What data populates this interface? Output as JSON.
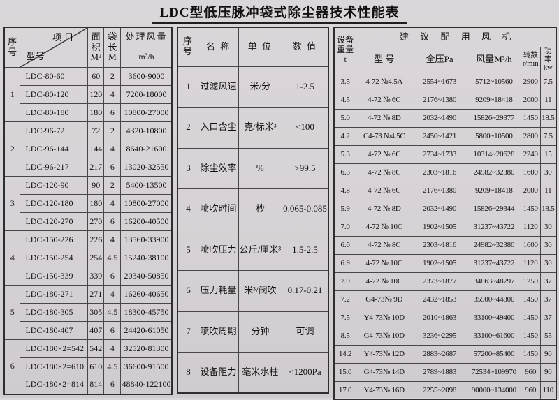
{
  "title": "LDC型低压脉冲袋式除尘器技术性能表",
  "left_table": {
    "headers": {
      "no": "序\n号",
      "item": "项目",
      "model": "型号",
      "area": "面积\nM²",
      "bag_length": "袋长\nM",
      "airflow": "处理风量",
      "airflow_unit": "m³/h"
    },
    "groups": [
      {
        "no": "1",
        "rows": [
          {
            "model": "LDC-80-60",
            "area": "60",
            "bag": "2",
            "airflow": "3600-9000"
          },
          {
            "model": "LDC-80-120",
            "area": "120",
            "bag": "4",
            "airflow": "7200-18000"
          },
          {
            "model": "LDC-80-180",
            "area": "180",
            "bag": "6",
            "airflow": "10800-27000"
          }
        ]
      },
      {
        "no": "2",
        "rows": [
          {
            "model": "LDC-96-72",
            "area": "72",
            "bag": "2",
            "airflow": "4320-10800"
          },
          {
            "model": "LDC-96-144",
            "area": "144",
            "bag": "4",
            "airflow": "8640-21600"
          },
          {
            "model": "LDC-96-217",
            "area": "217",
            "bag": "6",
            "airflow": "13020-32550"
          }
        ]
      },
      {
        "no": "3",
        "rows": [
          {
            "model": "LDC-120-90",
            "area": "90",
            "bag": "2",
            "airflow": "5400-13500"
          },
          {
            "model": "LDC-120-180",
            "area": "180",
            "bag": "4",
            "airflow": "10800-27000"
          },
          {
            "model": "LDC-120-270",
            "area": "270",
            "bag": "6",
            "airflow": "16200-40500"
          }
        ]
      },
      {
        "no": "4",
        "rows": [
          {
            "model": "LDC-150-226",
            "area": "226",
            "bag": "4",
            "airflow": "13560-33900"
          },
          {
            "model": "LDC-150-254",
            "area": "254",
            "bag": "4.5",
            "airflow": "15240-38100"
          },
          {
            "model": "LDC-150-339",
            "area": "339",
            "bag": "6",
            "airflow": "20340-50850"
          }
        ]
      },
      {
        "no": "5",
        "rows": [
          {
            "model": "LDC-180-271",
            "area": "271",
            "bag": "4",
            "airflow": "16260-40650"
          },
          {
            "model": "LDC-180-305",
            "area": "305",
            "bag": "4.5",
            "airflow": "18300-45750"
          },
          {
            "model": "LDC-180-407",
            "area": "407",
            "bag": "6",
            "airflow": "24420-61050"
          }
        ]
      },
      {
        "no": "6",
        "rows": [
          {
            "model": "LDC-180×2=542",
            "area": "542",
            "bag": "4",
            "airflow": "32520-81300"
          },
          {
            "model": "LDC-180×2=610",
            "area": "610",
            "bag": "4.5",
            "airflow": "36600-91500"
          },
          {
            "model": "LDC-180×2=814",
            "area": "814",
            "bag": "6",
            "airflow": "48840-122100"
          }
        ]
      }
    ]
  },
  "middle_table": {
    "headers": {
      "no": "序\n号",
      "name": "名 称",
      "unit": "单 位",
      "value": "数 值"
    },
    "rows": [
      {
        "no": "1",
        "name": "过滤风速",
        "unit": "米/分",
        "value": "1-2.5"
      },
      {
        "no": "2",
        "name": "入口含尘",
        "unit": "克/标米³",
        "value": "<100"
      },
      {
        "no": "3",
        "name": "除尘效率",
        "unit": "%",
        "value": ">99.5"
      },
      {
        "no": "4",
        "name": "喷吹时间",
        "unit": "秒",
        "value": "0.065-0.085"
      },
      {
        "no": "5",
        "name": "喷吹压力",
        "unit": "公斤/厘米³",
        "value": "1.5-2.5"
      },
      {
        "no": "6",
        "name": "压力耗量",
        "unit": "米³/阀吹",
        "value": "0.17-0.21"
      },
      {
        "no": "7",
        "name": "喷吹周期",
        "unit": "分钟",
        "value": "可调"
      },
      {
        "no": "8",
        "name": "设备阻力",
        "unit": "毫米水柱",
        "value": "<1200Pa"
      }
    ]
  },
  "right_table": {
    "headers": {
      "weight": "设备\n重量\nt",
      "fan_group": "建 议 配 用 风 机",
      "model": "型 号",
      "pressure": "全压Pa",
      "airflow": "风量M³/h",
      "speed": "转数\nr/min",
      "power": "功率\nkw"
    },
    "rows": [
      {
        "weight": "3.5",
        "model": "4-72 №4.5A",
        "pressure": "2554~1673",
        "airflow": "5712~10560",
        "speed": "2900",
        "power": "7.5"
      },
      {
        "weight": "4.5",
        "model": "4-72 № 6C",
        "pressure": "2176~1380",
        "airflow": "9209~18418",
        "speed": "2000",
        "power": "11"
      },
      {
        "weight": "5.0",
        "model": "4-72 № 8D",
        "pressure": "2032~1490",
        "airflow": "15826~29377",
        "speed": "1450",
        "power": "18.5"
      },
      {
        "weight": "4.2",
        "model": "C4-73 №4.5C",
        "pressure": "2450~1421",
        "airflow": "5800~10500",
        "speed": "2800",
        "power": "7.5"
      },
      {
        "weight": "5.3",
        "model": "4-72 № 6C",
        "pressure": "2734~1733",
        "airflow": "10314~20628",
        "speed": "2240",
        "power": "15"
      },
      {
        "weight": "6.3",
        "model": "4-72 № 8C",
        "pressure": "2303~1816",
        "airflow": "24982~32380",
        "speed": "1600",
        "power": "30"
      },
      {
        "weight": "4.8",
        "model": "4-72 № 6C",
        "pressure": "2176~1380",
        "airflow": "9209~18418",
        "speed": "2000",
        "power": "11"
      },
      {
        "weight": "5.9",
        "model": "4-72 № 8D",
        "pressure": "2032~1490",
        "airflow": "15826~29344",
        "speed": "1450",
        "power": "18.5"
      },
      {
        "weight": "7.0",
        "model": "4-72 № 10C",
        "pressure": "1902~1505",
        "airflow": "31237~43722",
        "speed": "1120",
        "power": "30"
      },
      {
        "weight": "6.6",
        "model": "4-72 № 8C",
        "pressure": "2303~1816",
        "airflow": "24982~32380",
        "speed": "1600",
        "power": "30"
      },
      {
        "weight": "6.9",
        "model": "4-72 № 10C",
        "pressure": "1902~1505",
        "airflow": "31237~43722",
        "speed": "1120",
        "power": "30"
      },
      {
        "weight": "7.9",
        "model": "4-72 № 10C",
        "pressure": "2373~1877",
        "airflow": "34863~48797",
        "speed": "1250",
        "power": "37"
      },
      {
        "weight": "7.2",
        "model": "G4-73№ 9D",
        "pressure": "2432~1853",
        "airflow": "35900~44800",
        "speed": "1450",
        "power": "37"
      },
      {
        "weight": "7.5",
        "model": "Y4-73№ 10D",
        "pressure": "2010~1863",
        "airflow": "33100~49400",
        "speed": "1450",
        "power": "37"
      },
      {
        "weight": "8.5",
        "model": "G4-73№ 10D",
        "pressure": "3236~2295",
        "airflow": "33100~61600",
        "speed": "1450",
        "power": "55"
      },
      {
        "weight": "14.2",
        "model": "Y4-73№ 12D",
        "pressure": "2883~2687",
        "airflow": "57200~85400",
        "speed": "1450",
        "power": "90"
      },
      {
        "weight": "15.0",
        "model": "G4-73№ 14D",
        "pressure": "2789~1883",
        "airflow": "72534~109970",
        "speed": "960",
        "power": "90"
      },
      {
        "weight": "17.0",
        "model": "Y4-73№ 16D",
        "pressure": "2255~2098",
        "airflow": "90000~134000",
        "speed": "960",
        "power": "110"
      }
    ]
  }
}
